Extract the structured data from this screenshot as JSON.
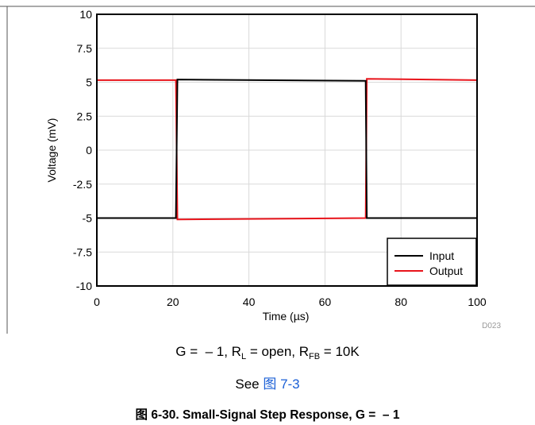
{
  "chart_data": {
    "type": "line",
    "x": [
      0,
      20.8,
      21.2,
      70.7,
      71.0,
      100
    ],
    "series": [
      {
        "name": "Input",
        "color": "#000000",
        "values": [
          -5.0,
          -5.0,
          5.2,
          5.1,
          -5.0,
          -5.0
        ]
      },
      {
        "name": "Output",
        "color": "#e8141b",
        "values": [
          5.15,
          5.15,
          -5.1,
          -5.0,
          5.25,
          5.15
        ]
      }
    ],
    "xlabel": "Time (µs)",
    "ylabel": "Voltage (mV)",
    "xlim": [
      0,
      100
    ],
    "ylim": [
      -10,
      10
    ],
    "x_ticks": [
      0,
      20,
      40,
      60,
      80,
      100
    ],
    "x_tick_labels": [
      "0",
      "20",
      "40",
      "60",
      "80",
      "100"
    ],
    "y_ticks": [
      10,
      7.5,
      5,
      2.5,
      0,
      -2.5,
      -5,
      -7.5,
      -10
    ],
    "y_tick_labels": [
      "10",
      "7.5",
      "5",
      "2.5",
      "0",
      "-2.5",
      "-5",
      "-7.5",
      "-10"
    ],
    "grid": true,
    "legend": "bottom-right",
    "watermark": "D023"
  },
  "caption": {
    "cond_g": "G =  – 1, R",
    "cond_l_sub": "L",
    "cond_mid": " = open, R",
    "cond_fb_sub": "FB",
    "cond_end": " = 10K",
    "see_prefix": "See ",
    "see_ref": "图 7-3",
    "figure_title": "图 6-30. Small-Signal Step Response, G =  – 1"
  }
}
